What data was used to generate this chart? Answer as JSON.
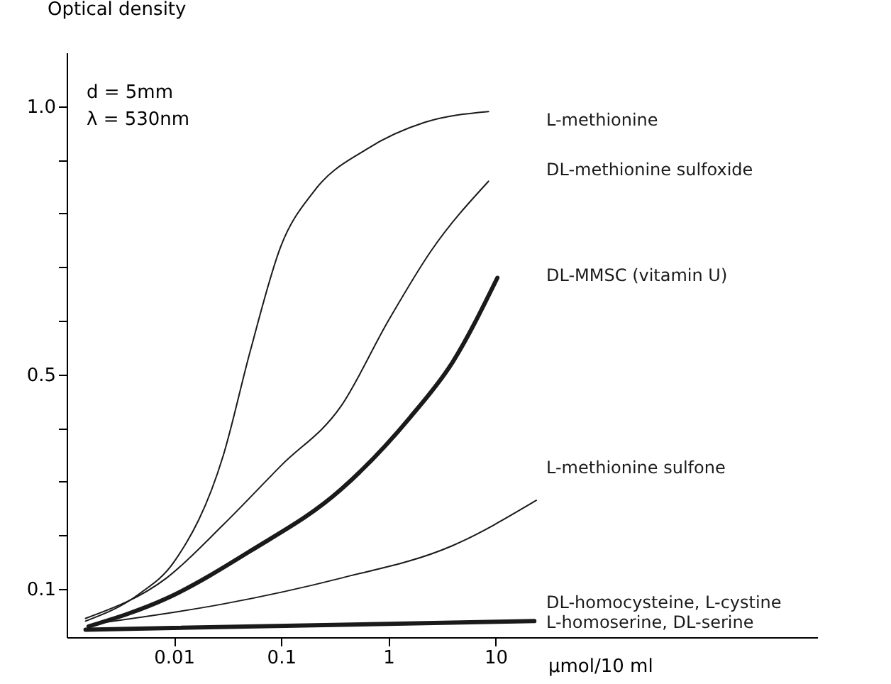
{
  "chart_data": {
    "type": "line",
    "xlabel": "µmol/10 ml",
    "ylabel": "Optical density",
    "annotations": [
      "d = 5mm",
      "λ = 530nm"
    ],
    "log": "x",
    "grid": false,
    "marker": "none",
    "line_style": "solid",
    "xlim": [
      0.001,
      10000
    ],
    "xticks": [
      0.01,
      0.1,
      1,
      10
    ],
    "ylim": [
      0.01,
      1.1
    ],
    "yticks": [
      {
        "value": 0.1,
        "label": "0.1"
      },
      {
        "value": 0.2,
        "label": null
      },
      {
        "value": 0.3,
        "label": null
      },
      {
        "value": 0.4,
        "label": null
      },
      {
        "value": 0.5,
        "label": "0.5"
      },
      {
        "value": 0.6,
        "label": null
      },
      {
        "value": 0.7,
        "label": null
      },
      {
        "value": 0.8,
        "label": null
      },
      {
        "value": 0.9,
        "label": null
      },
      {
        "value": 1.0,
        "label": "1.0"
      }
    ],
    "series": [
      {
        "name": "L-methionine",
        "color": "#1a1a1a",
        "x": [
          0.0015,
          0.0047,
          0.01,
          0.029,
          0.051,
          0.1,
          0.2,
          0.63,
          2.2,
          8.6
        ],
        "values": [
          0.04,
          0.09,
          0.15,
          0.35,
          0.54,
          0.74,
          0.84,
          0.92,
          0.97,
          0.99
        ]
      },
      {
        "name": "DL-methionine sulfoxide",
        "color": "#1a1a1a",
        "x": [
          0.0015,
          0.0085,
          0.029,
          0.1,
          0.36,
          1.0,
          2.5,
          8.6
        ],
        "values": [
          0.045,
          0.12,
          0.22,
          0.33,
          0.44,
          0.6,
          0.73,
          0.86
        ]
      },
      {
        "name": "DL-MMSC (vitamin U)",
        "color": "#1a1a1a",
        "x": [
          0.0016,
          0.0085,
          0.051,
          0.36,
          1.6,
          3.9,
          10.4
        ],
        "values": [
          0.03,
          0.082,
          0.17,
          0.285,
          0.42,
          0.52,
          0.68
        ]
      },
      {
        "name": "L-methionine sulfone",
        "color": "#1a1a1a",
        "x": [
          0.0018,
          0.029,
          0.36,
          3.9,
          24
        ],
        "values": [
          0.035,
          0.072,
          0.12,
          0.18,
          0.265
        ]
      },
      {
        "name": "DL-homocysteine, L-cystine\nL-homoserine, DL-serine",
        "color": "#1a1a1a",
        "x": [
          0.0015,
          23
        ],
        "values": [
          0.024,
          0.04
        ]
      }
    ]
  }
}
